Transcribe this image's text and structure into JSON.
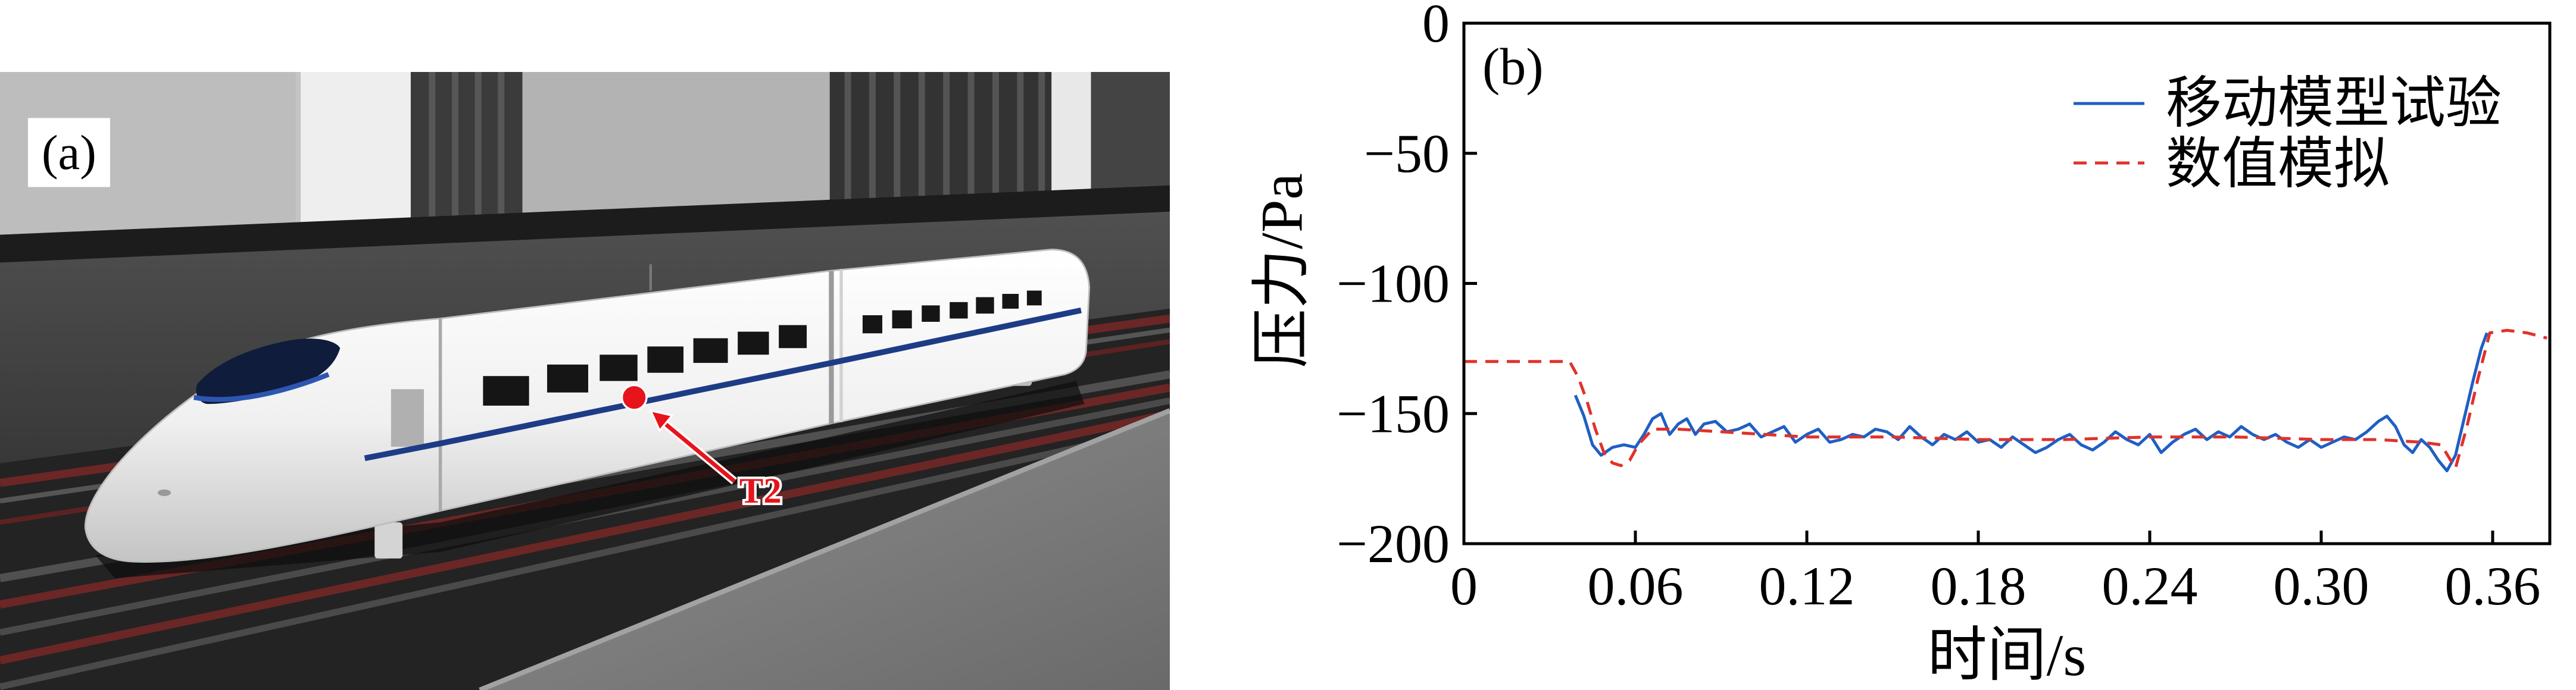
{
  "figure": {
    "panel_a_label": "(a)",
    "panel_b_label": "(b)",
    "measurement_point": "T2"
  },
  "chart_data": {
    "type": "line",
    "xlabel": "时间/s",
    "ylabel": "压力/Pa",
    "xlim": [
      0,
      0.38
    ],
    "ylim": [
      -200,
      0
    ],
    "x_ticks": [
      0,
      0.06,
      0.12,
      0.18,
      0.24,
      0.3,
      0.36
    ],
    "x_tick_labels": [
      "0",
      "0.06",
      "0.12",
      "0.18",
      "0.24",
      "0.30",
      "0.36"
    ],
    "y_ticks": [
      0,
      -50,
      -100,
      -150,
      -200
    ],
    "y_tick_labels": [
      "0",
      "−50",
      "−100",
      "−150",
      "−200"
    ],
    "grid": false,
    "legend": "top-right",
    "series": [
      {
        "name": "移动模型试验",
        "color": "#1f5fc4",
        "line_style": "solid",
        "x": [
          0.039,
          0.042,
          0.045,
          0.048,
          0.052,
          0.056,
          0.06,
          0.063,
          0.066,
          0.069,
          0.072,
          0.075,
          0.078,
          0.081,
          0.084,
          0.088,
          0.092,
          0.096,
          0.1,
          0.104,
          0.108,
          0.112,
          0.116,
          0.12,
          0.124,
          0.128,
          0.132,
          0.136,
          0.14,
          0.144,
          0.148,
          0.152,
          0.156,
          0.16,
          0.164,
          0.168,
          0.172,
          0.176,
          0.18,
          0.184,
          0.188,
          0.192,
          0.196,
          0.2,
          0.204,
          0.208,
          0.212,
          0.216,
          0.22,
          0.224,
          0.228,
          0.232,
          0.236,
          0.24,
          0.244,
          0.248,
          0.252,
          0.256,
          0.26,
          0.264,
          0.268,
          0.272,
          0.276,
          0.28,
          0.284,
          0.288,
          0.292,
          0.296,
          0.3,
          0.304,
          0.308,
          0.312,
          0.316,
          0.32,
          0.323,
          0.326,
          0.329,
          0.332,
          0.335,
          0.338,
          0.341,
          0.344,
          0.347,
          0.35,
          0.353,
          0.356,
          0.358
        ],
        "y": [
          -143,
          -151,
          -162,
          -166,
          -163,
          -162,
          -163,
          -158,
          -152,
          -150,
          -158,
          -154,
          -152,
          -158,
          -154,
          -153,
          -157,
          -156,
          -154,
          -159,
          -157,
          -155,
          -161,
          -158,
          -156,
          -161,
          -160,
          -158,
          -159,
          -156,
          -157,
          -160,
          -155,
          -159,
          -162,
          -158,
          -160,
          -157,
          -161,
          -160,
          -163,
          -159,
          -162,
          -165,
          -163,
          -160,
          -158,
          -162,
          -164,
          -161,
          -157,
          -160,
          -162,
          -158,
          -165,
          -161,
          -158,
          -156,
          -160,
          -157,
          -159,
          -155,
          -158,
          -160,
          -158,
          -161,
          -163,
          -160,
          -163,
          -161,
          -159,
          -160,
          -157,
          -153,
          -151,
          -155,
          -162,
          -165,
          -160,
          -163,
          -168,
          -172,
          -166,
          -152,
          -138,
          -125,
          -119
        ]
      },
      {
        "name": "数值模拟",
        "color": "#e0322c",
        "line_style": "dashed",
        "x": [
          0,
          0.02,
          0.037,
          0.04,
          0.043,
          0.046,
          0.049,
          0.052,
          0.055,
          0.058,
          0.061,
          0.066,
          0.075,
          0.09,
          0.105,
          0.12,
          0.15,
          0.18,
          0.21,
          0.24,
          0.27,
          0.3,
          0.32,
          0.335,
          0.342,
          0.347,
          0.351,
          0.355,
          0.359,
          0.365,
          0.372,
          0.379
        ],
        "y": [
          -130,
          -130,
          -130,
          -136,
          -145,
          -156,
          -165,
          -169,
          -170,
          -168,
          -162,
          -156,
          -156,
          -157,
          -158,
          -159,
          -159,
          -160,
          -160,
          -159,
          -159,
          -160,
          -160,
          -161,
          -162,
          -171,
          -155,
          -136,
          -119,
          -118,
          -119,
          -121
        ]
      }
    ]
  }
}
